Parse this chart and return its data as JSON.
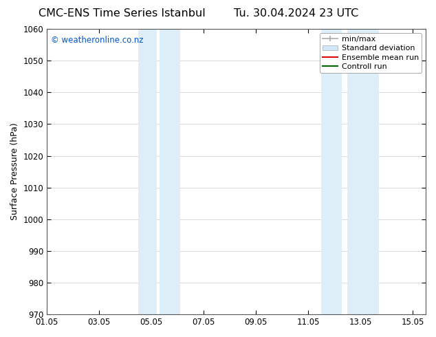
{
  "title_left": "CMC-ENS Time Series Istanbul",
  "title_right": "Tu. 30.04.2024 23 UTC",
  "ylabel": "Surface Pressure (hPa)",
  "xlabel": "",
  "ylim": [
    970,
    1060
  ],
  "yticks": [
    970,
    980,
    990,
    1000,
    1010,
    1020,
    1030,
    1040,
    1050,
    1060
  ],
  "xlim_start": 0.0,
  "xlim_end": 14.5,
  "xtick_labels": [
    "01.05",
    "03.05",
    "05.05",
    "07.05",
    "09.05",
    "11.05",
    "13.05",
    "15.05"
  ],
  "xtick_positions": [
    0,
    2,
    4,
    6,
    8,
    10,
    12,
    14
  ],
  "shaded_bands": [
    {
      "x_start": 3.5,
      "x_end": 4.2,
      "color": "#ddeef8"
    },
    {
      "x_start": 4.2,
      "x_end": 5.2,
      "color": "#ddeef8"
    },
    {
      "x_start": 10.5,
      "x_end": 11.5,
      "color": "#ddeef8"
    },
    {
      "x_start": 11.5,
      "x_end": 12.7,
      "color": "#ddeef8"
    }
  ],
  "copyright_text": "© weatheronline.co.nz",
  "copyright_color": "#0055cc",
  "legend_entries": [
    {
      "label": "min/max",
      "color": "#aaaaaa",
      "lw": 1.2,
      "style": "line_with_cap"
    },
    {
      "label": "Standard deviation",
      "color": "#d0e8f8",
      "lw": 8,
      "style": "band"
    },
    {
      "label": "Ensemble mean run",
      "color": "#dd0000",
      "lw": 1.5,
      "style": "line"
    },
    {
      "label": "Controll run",
      "color": "#006600",
      "lw": 1.5,
      "style": "line"
    }
  ],
  "background_color": "#ffffff",
  "plot_bg_color": "#ffffff",
  "grid_color": "#cccccc",
  "title_fontsize": 11.5,
  "label_fontsize": 9,
  "tick_fontsize": 8.5,
  "legend_fontsize": 8
}
